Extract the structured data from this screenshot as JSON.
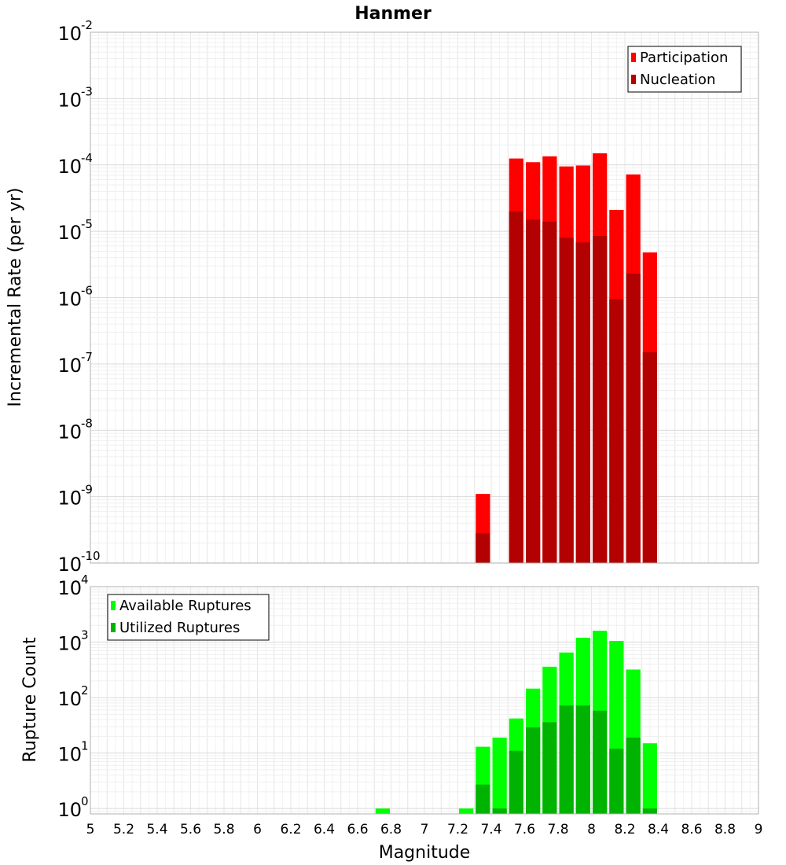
{
  "chart_data": {
    "title": "Hanmer",
    "type": "bar",
    "xlabel": "Magnitude",
    "xlim": [
      5,
      9
    ],
    "x_ticks": [
      "5",
      "5.2",
      "5.4",
      "5.6",
      "5.8",
      "6",
      "6.2",
      "6.4",
      "6.6",
      "6.8",
      "7",
      "7.2",
      "7.4",
      "7.6",
      "7.8",
      "8",
      "8.2",
      "8.4",
      "8.6",
      "8.8",
      "9"
    ],
    "panels": [
      {
        "name": "rate-panel",
        "ylabel": "Incremental Rate (per yr)",
        "yscale": "log",
        "ylim": [
          1e-10,
          0.01
        ],
        "y_ticks": [
          {
            "base": "10",
            "exp": "-10"
          },
          {
            "base": "10",
            "exp": "-9"
          },
          {
            "base": "10",
            "exp": "-8"
          },
          {
            "base": "10",
            "exp": "-7"
          },
          {
            "base": "10",
            "exp": "-6"
          },
          {
            "base": "10",
            "exp": "-5"
          },
          {
            "base": "10",
            "exp": "-4"
          },
          {
            "base": "10",
            "exp": "-3"
          },
          {
            "base": "10",
            "exp": "-2"
          }
        ],
        "legend_position": "top-right",
        "series": [
          {
            "name": "Participation",
            "color": "#ff0000",
            "x": [
              7.35,
              7.55,
              7.65,
              7.75,
              7.85,
              7.95,
              8.05,
              8.15,
              8.25,
              8.35
            ],
            "values": [
              1.1e-09,
              0.000125,
              0.00011,
              0.000135,
              9.5e-05,
              9.8e-05,
              0.00015,
              2.1e-05,
              7.2e-05,
              4.8e-06
            ]
          },
          {
            "name": "Nucleation",
            "color": "#b30000",
            "x": [
              7.35,
              7.55,
              7.65,
              7.75,
              7.85,
              7.95,
              8.05,
              8.15,
              8.25,
              8.35
            ],
            "values": [
              2.8e-10,
              2e-05,
              1.5e-05,
              1.4e-05,
              8e-06,
              6.8e-06,
              8.5e-06,
              9.5e-07,
              2.3e-06,
              1.5e-07
            ]
          }
        ]
      },
      {
        "name": "count-panel",
        "ylabel": "Rupture Count",
        "yscale": "log",
        "ylim": [
          0.8,
          10000
        ],
        "y_ticks": [
          {
            "base": "10",
            "exp": "0",
            "value": 1
          },
          {
            "base": "10",
            "exp": "1",
            "value": 10
          },
          {
            "base": "10",
            "exp": "2",
            "value": 100
          },
          {
            "base": "10",
            "exp": "3",
            "value": 1000
          },
          {
            "base": "10",
            "exp": "4",
            "value": 10000
          }
        ],
        "legend_position": "top-left",
        "series": [
          {
            "name": "Available Ruptures",
            "color": "#00ff00",
            "x": [
              6.75,
              7.25,
              7.35,
              7.45,
              7.55,
              7.65,
              7.75,
              7.85,
              7.95,
              8.05,
              8.15,
              8.25,
              8.35
            ],
            "values": [
              1,
              1,
              13,
              19,
              42,
              145,
              360,
              650,
              1200,
              1600,
              1050,
              320,
              15
            ]
          },
          {
            "name": "Utilized Ruptures",
            "color": "#00b300",
            "x": [
              7.35,
              7.45,
              7.55,
              7.65,
              7.75,
              7.85,
              7.95,
              8.05,
              8.15,
              8.25,
              8.35
            ],
            "values": [
              2.7,
              1,
              11,
              29,
              36,
              72,
              72,
              58,
              12,
              19,
              1
            ]
          }
        ]
      }
    ]
  }
}
